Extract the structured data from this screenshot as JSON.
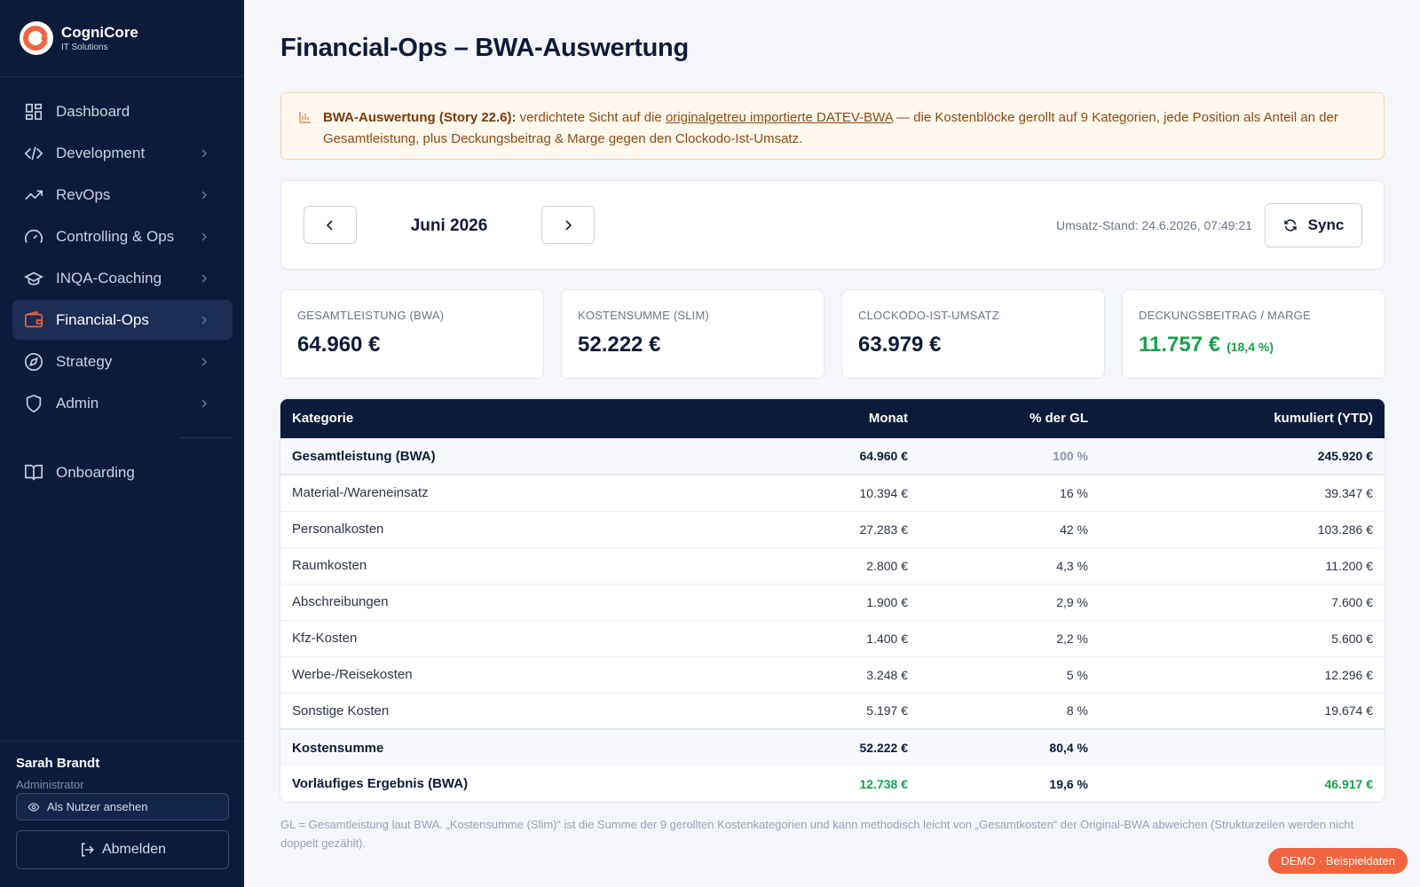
{
  "brand": {
    "name": "CogniCore",
    "sub": "IT Solutions"
  },
  "nav": [
    "Dashboard",
    "Development",
    "RevOps",
    "Controlling & Ops",
    "INQA-Coaching",
    "Financial-Ops",
    "Strategy",
    "Admin",
    "Onboarding"
  ],
  "user": {
    "name": "Sarah Brandt",
    "role": "Administrator",
    "view_as": "Als Nutzer ansehen",
    "logout": "Abmelden"
  },
  "header": {
    "title": "Financial-Ops – BWA-Auswertung"
  },
  "notice": {
    "bold": "BWA-Auswertung (Story 22.6):",
    "text1": " verdichtete Sicht auf die ",
    "link": "originalgetreu importierte DATEV-BWA",
    "text2": " — die Kostenblöcke gerollt auf 9 Kategorien, jede Position als Anteil an der Gesamtleistung, plus Deckungsbeitrag & Marge gegen den Clockodo-Ist-Umsatz."
  },
  "period": {
    "month": "Juni 2026",
    "stand": "Umsatz-Stand: 24.6.2026, 07:49:21",
    "sync": "Sync"
  },
  "kpis": [
    {
      "label": "GESAMTLEISTUNG (BWA)",
      "value": "64.960 €"
    },
    {
      "label": "KOSTENSUMME (SLIM)",
      "value": "52.222 €"
    },
    {
      "label": "CLOCKODO-IST-UMSATZ",
      "value": "63.979 €"
    },
    {
      "label": "DECKUNGSBEITRAG / MARGE",
      "value": "11.757 €",
      "extra": "(18,4 %)"
    }
  ],
  "table": {
    "headers": [
      "Kategorie",
      "Monat",
      "% der GL",
      "kumuliert (YTD)"
    ],
    "rows": [
      [
        "Gesamtleistung (BWA)",
        "64.960 €",
        "100 %",
        "245.920 €"
      ],
      [
        "Material-/Wareneinsatz",
        "10.394 €",
        "16 %",
        "39.347 €"
      ],
      [
        "Personalkosten",
        "27.283 €",
        "42 %",
        "103.286 €"
      ],
      [
        "Raumkosten",
        "2.800 €",
        "4,3 %",
        "11.200 €"
      ],
      [
        "Abschreibungen",
        "1.900 €",
        "2,9 %",
        "7.600 €"
      ],
      [
        "Kfz-Kosten",
        "1.400 €",
        "2,2 %",
        "5.600 €"
      ],
      [
        "Werbe-/Reisekosten",
        "3.248 €",
        "5 %",
        "12.296 €"
      ],
      [
        "Sonstige Kosten",
        "5.197 €",
        "8 %",
        "19.674 €"
      ],
      [
        "Kostensumme",
        "52.222 €",
        "80,4 %"
      ],
      [
        "Vorläufiges Ergebnis (BWA)",
        "12.738 €",
        "19,6 %",
        "46.917 €"
      ]
    ]
  },
  "footnote": "GL = Gesamtleistung laut BWA. „Kostensumme (Slim)“ ist die Summe der 9 gerollten Kostenkategorien und kann methodisch leicht von „Gesamtkosten“ der Original-BWA abweichen (Strukturzeilen werden nicht doppelt gezählt).",
  "badge": "DEMO · Beispieldaten"
}
